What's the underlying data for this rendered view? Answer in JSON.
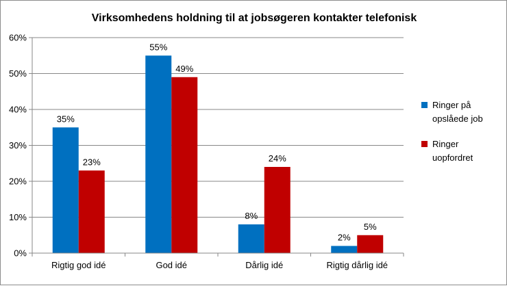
{
  "chart_data": {
    "type": "bar",
    "title": "Virksomhedens holdning til at jobsøgeren kontakter telefonisk",
    "xlabel": "",
    "ylabel": "",
    "categories": [
      "Rigtig god idé",
      "God idé",
      "Dårlig idé",
      "Rigtig dårlig idé"
    ],
    "series": [
      {
        "name": "Ringer på opslåede job",
        "legend_lines": [
          "Ringer på",
          "opslåede job"
        ],
        "color": "#0070c0",
        "values": [
          35,
          55,
          8,
          2
        ],
        "labels": [
          "35%",
          "55%",
          "8%",
          "2%"
        ]
      },
      {
        "name": "Ringer uopfordret",
        "legend_lines": [
          "Ringer",
          "uopfordret"
        ],
        "color": "#c00000",
        "values": [
          23,
          49,
          24,
          5
        ],
        "labels": [
          "23%",
          "49%",
          "24%",
          "5%"
        ]
      }
    ],
    "ylim": [
      0,
      60
    ],
    "yticks": [
      "0%",
      "10%",
      "20%",
      "30%",
      "40%",
      "50%",
      "60%"
    ],
    "grid": true,
    "legend_position": "right"
  }
}
